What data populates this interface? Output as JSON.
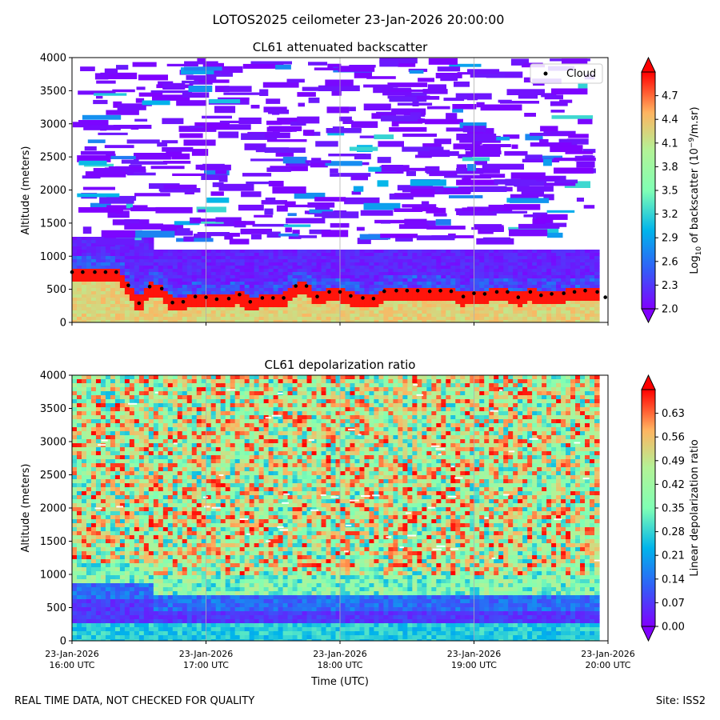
{
  "suptitle": "LOTOS2025 ceilometer 23-Jan-2026 20:00:00",
  "footer": {
    "left": "REAL TIME DATA, NOT CHECKED FOR QUALITY",
    "right": "Site: ISS2"
  },
  "colors": {
    "cloud_marker": "#000000",
    "grid": "#b0b0b0",
    "axis": "#000000"
  },
  "chart_data": [
    {
      "type": "heatmap",
      "title": "CL61 attenuated backscatter",
      "ylabel": "Altitude (meters)",
      "xlabel": "",
      "ylim": [
        0,
        4000
      ],
      "yticks": [
        0,
        500,
        1000,
        1500,
        2000,
        2500,
        3000,
        3500,
        4000
      ],
      "xlim_hours": [
        16,
        20
      ],
      "colorbar": {
        "label_prefix": "Log",
        "label_sub": "10",
        "label_mid": " of backscatter (10",
        "label_sup": "−9",
        "label_suffix": "/m.sr)",
        "range": [
          2.0,
          5.0
        ],
        "ticks": [
          "2.0",
          "2.3",
          "2.6",
          "2.9",
          "3.2",
          "3.5",
          "3.8",
          "4.1",
          "4.4",
          "4.7"
        ],
        "extend": "both"
      },
      "legend": {
        "label": "Cloud",
        "position": "top-right"
      },
      "cloud_base": {
        "hours": [
          16.0,
          16.08,
          16.17,
          16.25,
          16.33,
          16.42,
          16.5,
          16.58,
          16.67,
          16.75,
          16.83,
          16.92,
          17.0,
          17.08,
          17.17,
          17.25,
          17.33,
          17.42,
          17.5,
          17.58,
          17.67,
          17.75,
          17.83,
          17.92,
          18.0,
          18.08,
          18.17,
          18.25,
          18.33,
          18.42,
          18.5,
          18.58,
          18.67,
          18.75,
          18.83,
          18.92,
          19.0,
          19.08,
          19.17,
          19.25,
          19.33,
          19.42,
          19.5,
          19.58,
          19.67,
          19.75,
          19.83,
          19.92,
          19.98
        ],
        "altitude_m": [
          760,
          760,
          760,
          760,
          760,
          560,
          290,
          540,
          510,
          300,
          310,
          390,
          380,
          350,
          360,
          420,
          310,
          370,
          370,
          370,
          550,
          550,
          390,
          460,
          460,
          400,
          370,
          360,
          470,
          480,
          480,
          480,
          470,
          480,
          470,
          390,
          440,
          430,
          460,
          460,
          380,
          460,
          410,
          430,
          440,
          460,
          480,
          460,
          380
        ]
      }
    },
    {
      "type": "heatmap",
      "title": "CL61 depolarization ratio",
      "ylabel": "Altitude (meters)",
      "xlabel": "Time (UTC)",
      "ylim": [
        0,
        4000
      ],
      "yticks": [
        0,
        500,
        1000,
        1500,
        2000,
        2500,
        3000,
        3500,
        4000
      ],
      "xlim_hours": [
        16,
        20
      ],
      "xticks": [
        {
          "date": "23-Jan-2026",
          "time": "16:00 UTC"
        },
        {
          "date": "23-Jan-2026",
          "time": "17:00 UTC"
        },
        {
          "date": "23-Jan-2026",
          "time": "18:00 UTC"
        },
        {
          "date": "23-Jan-2026",
          "time": "19:00 UTC"
        },
        {
          "date": "23-Jan-2026",
          "time": "20:00 UTC"
        }
      ],
      "colorbar": {
        "label": "Linear depolarization ratio",
        "range": [
          0.0,
          0.7
        ],
        "ticks": [
          "0.00",
          "0.07",
          "0.14",
          "0.21",
          "0.28",
          "0.35",
          "0.42",
          "0.49",
          "0.56",
          "0.63"
        ],
        "extend": "both"
      }
    }
  ]
}
